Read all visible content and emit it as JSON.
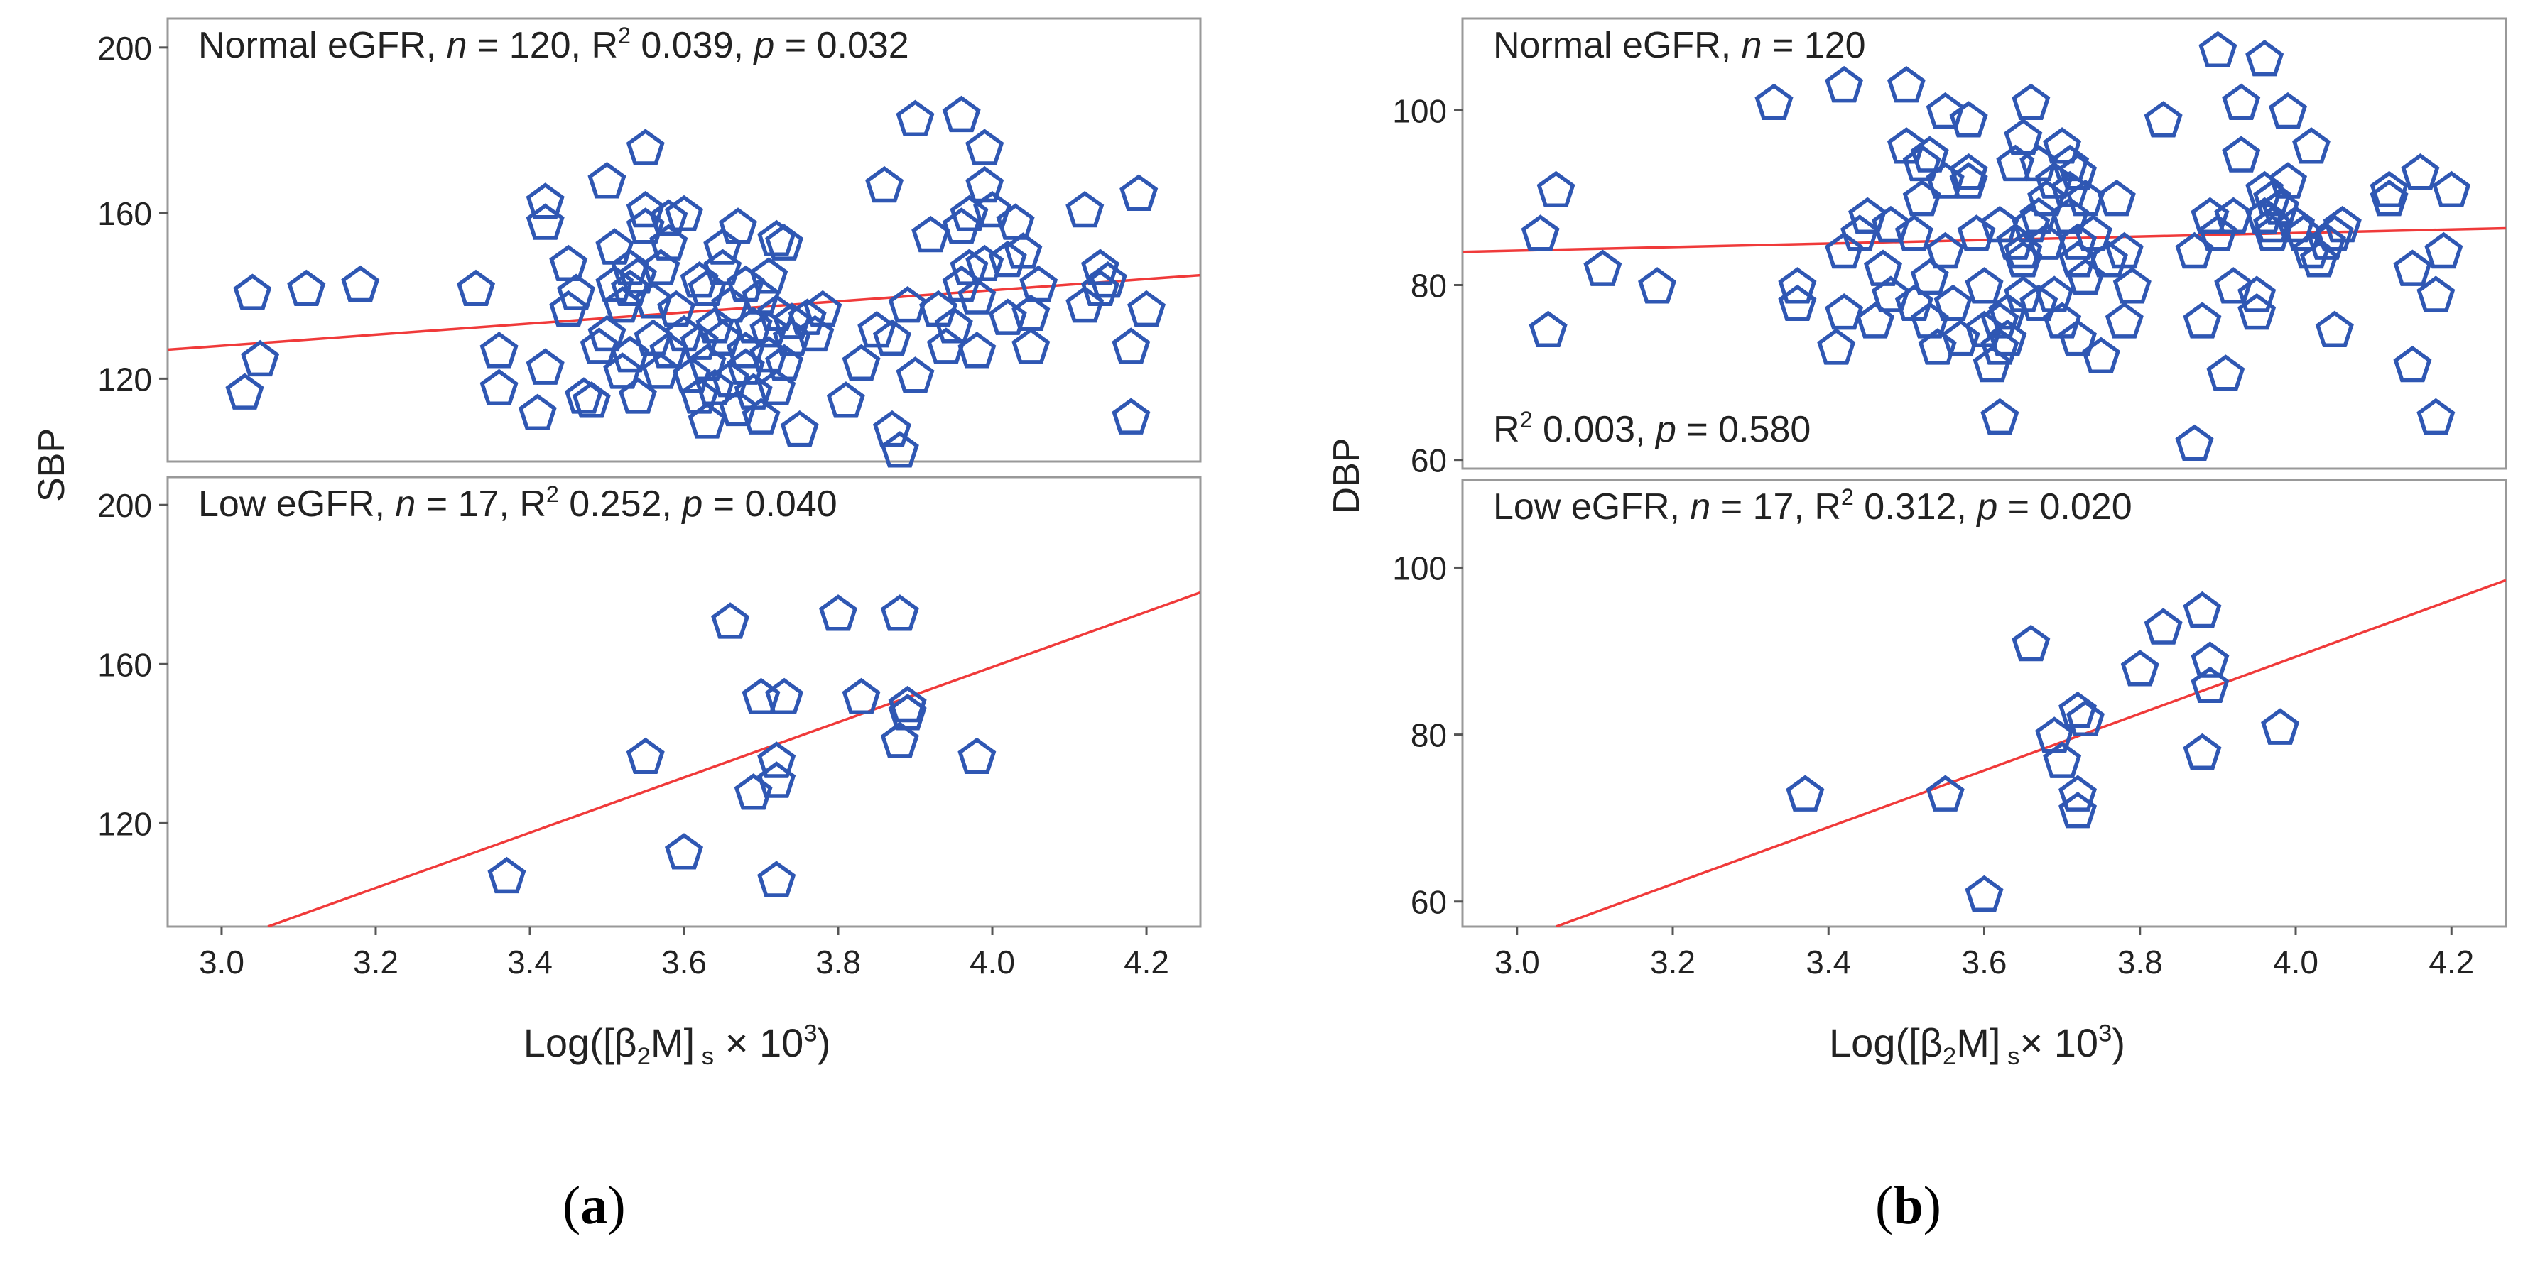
{
  "colors": {
    "marker": "#2f57b3",
    "line": "#f03a3a",
    "frame": "#999999",
    "text": "#222222"
  },
  "panel_labels": [
    {
      "open": "(",
      "letter": "a",
      "close": ")"
    },
    {
      "open": "(",
      "letter": "b",
      "close": ")"
    }
  ],
  "chart_data": [
    {
      "id": "a-top",
      "type": "scatter",
      "ylabel": "SBP",
      "xlim": [
        2.93,
        4.27
      ],
      "ylim": [
        100,
        207
      ],
      "yticks": [
        120,
        160,
        200
      ],
      "xticks": [],
      "annotation": [
        "Normal eGFR, ",
        "n",
        " = 120, R",
        "2",
        " 0.039, ",
        "p",
        " = 0.032"
      ],
      "fit": [
        [
          2.93,
          127
        ],
        [
          4.27,
          145
        ]
      ],
      "points": [
        [
          3.03,
          117
        ],
        [
          3.04,
          141
        ],
        [
          3.05,
          125
        ],
        [
          3.11,
          142
        ],
        [
          3.18,
          143
        ],
        [
          3.33,
          142
        ],
        [
          3.36,
          127
        ],
        [
          3.36,
          118
        ],
        [
          3.41,
          112
        ],
        [
          3.42,
          123
        ],
        [
          3.42,
          163
        ],
        [
          3.42,
          158
        ],
        [
          3.45,
          148
        ],
        [
          3.46,
          141
        ],
        [
          3.47,
          116
        ],
        [
          3.48,
          115
        ],
        [
          3.49,
          128
        ],
        [
          3.5,
          168
        ],
        [
          3.5,
          131
        ],
        [
          3.51,
          143
        ],
        [
          3.51,
          152
        ],
        [
          3.52,
          138
        ],
        [
          3.52,
          122
        ],
        [
          3.53,
          147
        ],
        [
          3.53,
          126
        ],
        [
          3.54,
          116
        ],
        [
          3.54,
          145
        ],
        [
          3.55,
          157
        ],
        [
          3.55,
          176
        ],
        [
          3.55,
          161
        ],
        [
          3.56,
          139
        ],
        [
          3.56,
          130
        ],
        [
          3.57,
          122
        ],
        [
          3.57,
          147
        ],
        [
          3.58,
          153
        ],
        [
          3.58,
          127
        ],
        [
          3.59,
          137
        ],
        [
          3.6,
          160
        ],
        [
          3.6,
          131
        ],
        [
          3.61,
          121
        ],
        [
          3.62,
          129
        ],
        [
          3.62,
          116
        ],
        [
          3.63,
          110
        ],
        [
          3.63,
          124
        ],
        [
          3.63,
          142
        ],
        [
          3.64,
          118
        ],
        [
          3.64,
          133
        ],
        [
          3.65,
          147
        ],
        [
          3.65,
          130
        ],
        [
          3.65,
          152
        ],
        [
          3.66,
          120
        ],
        [
          3.66,
          138
        ],
        [
          3.67,
          113
        ],
        [
          3.67,
          157
        ],
        [
          3.68,
          127
        ],
        [
          3.68,
          143
        ],
        [
          3.69,
          117
        ],
        [
          3.69,
          133
        ],
        [
          3.7,
          111
        ],
        [
          3.7,
          140
        ],
        [
          3.71,
          145
        ],
        [
          3.71,
          126
        ],
        [
          3.72,
          136
        ],
        [
          3.72,
          118
        ],
        [
          3.72,
          154
        ],
        [
          3.73,
          153
        ],
        [
          3.73,
          124
        ],
        [
          3.74,
          134
        ],
        [
          3.75,
          108
        ],
        [
          3.76,
          135
        ],
        [
          3.77,
          131
        ],
        [
          3.78,
          137
        ],
        [
          3.81,
          115
        ],
        [
          3.83,
          124
        ],
        [
          3.85,
          132
        ],
        [
          3.86,
          167
        ],
        [
          3.87,
          108
        ],
        [
          3.88,
          103
        ],
        [
          3.89,
          138
        ],
        [
          3.9,
          121
        ],
        [
          3.9,
          183
        ],
        [
          3.92,
          155
        ],
        [
          3.93,
          137
        ],
        [
          3.94,
          128
        ],
        [
          3.95,
          133
        ],
        [
          3.96,
          184
        ],
        [
          3.96,
          143
        ],
        [
          3.96,
          157
        ],
        [
          3.97,
          160
        ],
        [
          3.98,
          140
        ],
        [
          3.98,
          127
        ],
        [
          3.99,
          176
        ],
        [
          3.99,
          148
        ],
        [
          3.99,
          167
        ],
        [
          4.0,
          161
        ],
        [
          4.02,
          135
        ],
        [
          4.02,
          149
        ],
        [
          4.03,
          158
        ],
        [
          4.04,
          151
        ],
        [
          4.05,
          136
        ],
        [
          4.05,
          128
        ],
        [
          4.06,
          143
        ],
        [
          4.12,
          161
        ],
        [
          4.12,
          138
        ],
        [
          4.14,
          147
        ],
        [
          4.15,
          144
        ],
        [
          4.18,
          111
        ],
        [
          4.18,
          128
        ],
        [
          4.19,
          165
        ],
        [
          4.2,
          137
        ],
        [
          4.14,
          142
        ],
        [
          3.45,
          137
        ],
        [
          3.58,
          159
        ],
        [
          3.71,
          132
        ],
        [
          3.87,
          130
        ],
        [
          3.68,
          123
        ],
        [
          3.62,
          144
        ],
        [
          3.97,
          147
        ],
        [
          3.53,
          142
        ],
        [
          3.74,
          130
        ]
      ]
    },
    {
      "id": "a-bottom",
      "type": "scatter",
      "ylabel": "",
      "xlim": [
        2.93,
        4.27
      ],
      "ylim": [
        94,
        207
      ],
      "yticks": [
        120,
        160,
        200
      ],
      "xticks": [
        3.0,
        3.2,
        3.4,
        3.6,
        3.8,
        4.0,
        4.2
      ],
      "xlabel": [
        "Log([β",
        "2",
        "M]",
        " s",
        " × 10",
        "3",
        ")"
      ],
      "annotation": [
        "Low eGFR, ",
        "n",
        " = 17, R",
        "2",
        " 0.252, ",
        "p",
        " = 0.040"
      ],
      "fit": [
        [
          3.06,
          94
        ],
        [
          4.27,
          178
        ]
      ],
      "points": [
        [
          3.37,
          107
        ],
        [
          3.55,
          137
        ],
        [
          3.6,
          113
        ],
        [
          3.66,
          171
        ],
        [
          3.69,
          128
        ],
        [
          3.7,
          152
        ],
        [
          3.72,
          131
        ],
        [
          3.72,
          136
        ],
        [
          3.73,
          152
        ],
        [
          3.72,
          106
        ],
        [
          3.8,
          173
        ],
        [
          3.83,
          152
        ],
        [
          3.88,
          141
        ],
        [
          3.88,
          173
        ],
        [
          3.89,
          148
        ],
        [
          3.89,
          150
        ],
        [
          3.98,
          137
        ]
      ]
    },
    {
      "id": "b-top",
      "type": "scatter",
      "ylabel": "DBP",
      "xlim": [
        2.93,
        4.27
      ],
      "ylim": [
        59,
        110.5
      ],
      "yticks": [
        60,
        80,
        100
      ],
      "xticks": [],
      "annotation": [
        "Normal eGFR, ",
        "n",
        " = 120"
      ],
      "annotation2": [
        "R",
        "2",
        " 0.003, ",
        "p",
        " = 0.580"
      ],
      "fit": [
        [
          2.93,
          83.8
        ],
        [
          4.27,
          86.5
        ]
      ],
      "points": [
        [
          3.03,
          86
        ],
        [
          3.04,
          75
        ],
        [
          3.05,
          91
        ],
        [
          3.11,
          82
        ],
        [
          3.18,
          80
        ],
        [
          3.33,
          101
        ],
        [
          3.36,
          80
        ],
        [
          3.36,
          78
        ],
        [
          3.41,
          73
        ],
        [
          3.42,
          103
        ],
        [
          3.42,
          84
        ],
        [
          3.42,
          77
        ],
        [
          3.45,
          88
        ],
        [
          3.46,
          76
        ],
        [
          3.47,
          82
        ],
        [
          3.48,
          79
        ],
        [
          3.5,
          103
        ],
        [
          3.5,
          96
        ],
        [
          3.51,
          86
        ],
        [
          3.51,
          78
        ],
        [
          3.52,
          90
        ],
        [
          3.52,
          94
        ],
        [
          3.53,
          81
        ],
        [
          3.53,
          76
        ],
        [
          3.54,
          73
        ],
        [
          3.55,
          92
        ],
        [
          3.55,
          100
        ],
        [
          3.55,
          84
        ],
        [
          3.56,
          78
        ],
        [
          3.57,
          74
        ],
        [
          3.58,
          92
        ],
        [
          3.58,
          99
        ],
        [
          3.59,
          86
        ],
        [
          3.6,
          75
        ],
        [
          3.6,
          80
        ],
        [
          3.61,
          71
        ],
        [
          3.62,
          65
        ],
        [
          3.62,
          73
        ],
        [
          3.62,
          76
        ],
        [
          3.63,
          74
        ],
        [
          3.63,
          77
        ],
        [
          3.64,
          85
        ],
        [
          3.64,
          94
        ],
        [
          3.65,
          84
        ],
        [
          3.65,
          97
        ],
        [
          3.65,
          79
        ],
        [
          3.66,
          101
        ],
        [
          3.66,
          87
        ],
        [
          3.67,
          88
        ],
        [
          3.67,
          94
        ],
        [
          3.68,
          90
        ],
        [
          3.68,
          85
        ],
        [
          3.69,
          92
        ],
        [
          3.69,
          79
        ],
        [
          3.7,
          76
        ],
        [
          3.7,
          96
        ],
        [
          3.71,
          94
        ],
        [
          3.71,
          88
        ],
        [
          3.72,
          93
        ],
        [
          3.72,
          85
        ],
        [
          3.72,
          74
        ],
        [
          3.73,
          81
        ],
        [
          3.73,
          90
        ],
        [
          3.74,
          86
        ],
        [
          3.75,
          72
        ],
        [
          3.76,
          83
        ],
        [
          3.77,
          90
        ],
        [
          3.78,
          84
        ],
        [
          3.78,
          76
        ],
        [
          3.83,
          99
        ],
        [
          3.87,
          62
        ],
        [
          3.88,
          76
        ],
        [
          3.89,
          88
        ],
        [
          3.9,
          86
        ],
        [
          3.9,
          107
        ],
        [
          3.91,
          70
        ],
        [
          3.92,
          80
        ],
        [
          3.93,
          101
        ],
        [
          3.93,
          95
        ],
        [
          3.95,
          77
        ],
        [
          3.95,
          79
        ],
        [
          3.96,
          106
        ],
        [
          3.96,
          88
        ],
        [
          3.96,
          91
        ],
        [
          3.97,
          86
        ],
        [
          3.97,
          90
        ],
        [
          3.98,
          89
        ],
        [
          3.99,
          92
        ],
        [
          3.99,
          100
        ],
        [
          4.0,
          87
        ],
        [
          4.02,
          84
        ],
        [
          4.02,
          96
        ],
        [
          4.03,
          83
        ],
        [
          4.04,
          85
        ],
        [
          4.05,
          86
        ],
        [
          4.05,
          75
        ],
        [
          4.06,
          87
        ],
        [
          4.12,
          91
        ],
        [
          4.12,
          90
        ],
        [
          4.15,
          71
        ],
        [
          4.15,
          82
        ],
        [
          4.16,
          93
        ],
        [
          4.18,
          65
        ],
        [
          4.18,
          79
        ],
        [
          4.19,
          84
        ],
        [
          4.2,
          91
        ],
        [
          3.48,
          87
        ],
        [
          3.58,
          93
        ],
        [
          3.71,
          91
        ],
        [
          3.87,
          84
        ],
        [
          3.65,
          83
        ],
        [
          3.72,
          83
        ],
        [
          3.97,
          87
        ],
        [
          3.53,
          95
        ],
        [
          3.62,
          87
        ],
        [
          3.79,
          80
        ],
        [
          3.92,
          88
        ],
        [
          4.01,
          86
        ],
        [
          3.44,
          86
        ],
        [
          3.67,
          78
        ]
      ]
    },
    {
      "id": "b-bottom",
      "type": "scatter",
      "ylabel": "",
      "xlim": [
        2.93,
        4.27
      ],
      "ylim": [
        57,
        110.5
      ],
      "yticks": [
        60,
        80,
        100
      ],
      "xticks": [
        3.0,
        3.2,
        3.4,
        3.6,
        3.8,
        4.0,
        4.2
      ],
      "xlabel": [
        "Log([β",
        "2",
        "M]",
        " s",
        "× 10",
        "3",
        ")"
      ],
      "annotation": [
        "Low eGFR, ",
        "n",
        " = 17, R",
        "2",
        " 0.312, ",
        "p",
        " = 0.020"
      ],
      "fit": [
        [
          3.05,
          57
        ],
        [
          4.27,
          98.5
        ]
      ],
      "points": [
        [
          3.37,
          73
        ],
        [
          3.55,
          73
        ],
        [
          3.6,
          61
        ],
        [
          3.66,
          91
        ],
        [
          3.69,
          80
        ],
        [
          3.7,
          77
        ],
        [
          3.72,
          71
        ],
        [
          3.72,
          73
        ],
        [
          3.72,
          83
        ],
        [
          3.73,
          82
        ],
        [
          3.8,
          88
        ],
        [
          3.83,
          93
        ],
        [
          3.88,
          95
        ],
        [
          3.88,
          78
        ],
        [
          3.89,
          89
        ],
        [
          3.89,
          86
        ],
        [
          3.98,
          81
        ]
      ]
    }
  ]
}
